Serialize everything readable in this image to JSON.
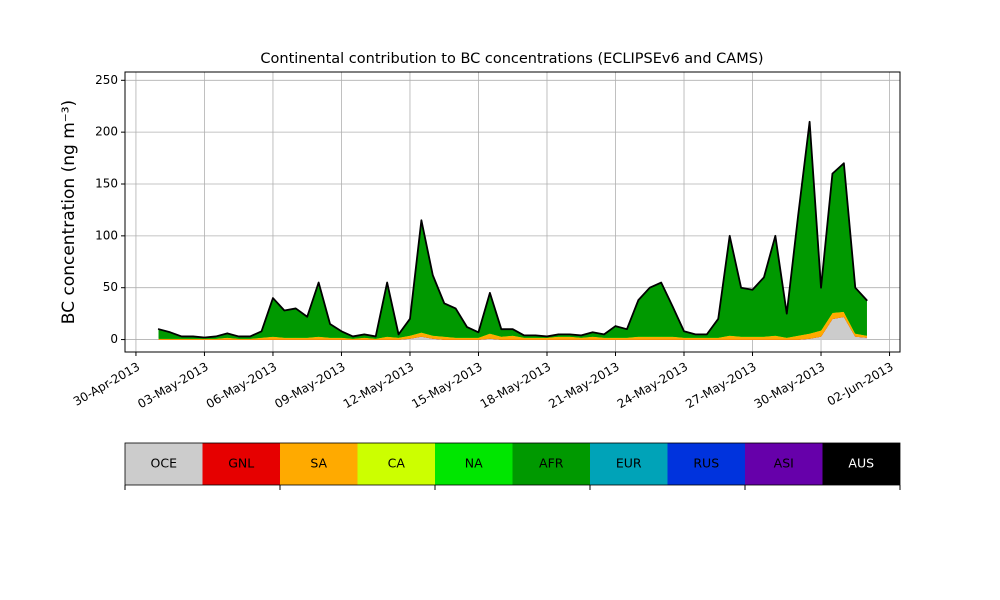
{
  "chart_data": {
    "type": "stacked-area",
    "title": "Continental contribution to BC concentrations (ECLIPSEv6 and CAMS)",
    "y_label": "BC concentration (ng m⁻³)",
    "x": [
      "2013-05-01 00:00",
      "2013-05-01 12:00",
      "2013-05-02 00:00",
      "2013-05-02 12:00",
      "2013-05-03 00:00",
      "2013-05-03 12:00",
      "2013-05-04 00:00",
      "2013-05-04 12:00",
      "2013-05-05 00:00",
      "2013-05-05 12:00",
      "2013-05-06 00:00",
      "2013-05-06 12:00",
      "2013-05-07 00:00",
      "2013-05-07 12:00",
      "2013-05-08 00:00",
      "2013-05-08 12:00",
      "2013-05-09 00:00",
      "2013-05-09 12:00",
      "2013-05-10 00:00",
      "2013-05-10 12:00",
      "2013-05-11 00:00",
      "2013-05-11 12:00",
      "2013-05-12 00:00",
      "2013-05-12 12:00",
      "2013-05-13 00:00",
      "2013-05-13 12:00",
      "2013-05-14 00:00",
      "2013-05-14 12:00",
      "2013-05-15 00:00",
      "2013-05-15 12:00",
      "2013-05-16 00:00",
      "2013-05-16 12:00",
      "2013-05-17 00:00",
      "2013-05-17 12:00",
      "2013-05-18 00:00",
      "2013-05-18 12:00",
      "2013-05-19 00:00",
      "2013-05-19 12:00",
      "2013-05-20 00:00",
      "2013-05-20 12:00",
      "2013-05-21 00:00",
      "2013-05-21 12:00",
      "2013-05-22 00:00",
      "2013-05-22 12:00",
      "2013-05-23 00:00",
      "2013-05-23 12:00",
      "2013-05-24 00:00",
      "2013-05-24 12:00",
      "2013-05-25 00:00",
      "2013-05-25 12:00",
      "2013-05-26 00:00",
      "2013-05-26 12:00",
      "2013-05-27 00:00",
      "2013-05-27 12:00",
      "2013-05-28 00:00",
      "2013-05-28 12:00",
      "2013-05-29 00:00",
      "2013-05-29 12:00",
      "2013-05-30 00:00",
      "2013-05-30 12:00",
      "2013-05-31 00:00",
      "2013-05-31 12:00",
      "2013-06-01 00:00"
    ],
    "series": [
      {
        "name": "OCE",
        "color": "#cccccc",
        "values": [
          0,
          0,
          0,
          0,
          0,
          0,
          0,
          0,
          0,
          0,
          0,
          0,
          0,
          0,
          0,
          0,
          0,
          0,
          0,
          0,
          0,
          0,
          1,
          3,
          1,
          0,
          0,
          0,
          0,
          1,
          0,
          0,
          0,
          0,
          0,
          0,
          0,
          0,
          0,
          0,
          0,
          0,
          0,
          0,
          0,
          0,
          0,
          0,
          0,
          0,
          0,
          0,
          0,
          0,
          0,
          0,
          0,
          1,
          3,
          20,
          22,
          3,
          2
        ]
      },
      {
        "name": "GNL",
        "color": "#e60000",
        "values": [
          0,
          0,
          0,
          0,
          0,
          0,
          0,
          0,
          0,
          0,
          0,
          0,
          0,
          0,
          0,
          0,
          0,
          0,
          0,
          0,
          0,
          0,
          0,
          0,
          0,
          0,
          0,
          0,
          0,
          0,
          0,
          0,
          0,
          0,
          0,
          0,
          0,
          0,
          0,
          0,
          0,
          0,
          0,
          0,
          0,
          0,
          0,
          0,
          0,
          0,
          0,
          0,
          0,
          0,
          0,
          0,
          0,
          0,
          0,
          0,
          0,
          0,
          0
        ]
      },
      {
        "name": "SA",
        "color": "#ffaa00",
        "values": [
          1,
          1,
          1,
          1,
          1,
          1,
          2,
          1,
          1,
          2,
          3,
          2,
          2,
          2,
          3,
          2,
          2,
          1,
          2,
          1,
          3,
          2,
          3,
          4,
          3,
          3,
          2,
          2,
          2,
          5,
          3,
          4,
          2,
          2,
          2,
          3,
          3,
          2,
          3,
          2,
          2,
          2,
          3,
          3,
          3,
          3,
          2,
          2,
          2,
          2,
          4,
          3,
          3,
          3,
          4,
          2,
          4,
          5,
          6,
          6,
          5,
          3,
          2
        ]
      },
      {
        "name": "CA",
        "color": "#ccff00",
        "values": [
          0,
          0,
          0,
          0,
          0,
          0,
          0,
          0,
          0,
          0,
          0,
          0,
          0,
          0,
          0,
          0,
          0,
          0,
          0,
          0,
          0,
          0,
          0,
          0,
          0,
          0,
          0,
          0,
          0,
          0,
          0,
          0,
          0,
          0,
          0,
          0,
          0,
          0,
          0,
          0,
          0,
          0,
          0,
          0,
          0,
          0,
          0,
          0,
          0,
          0,
          0,
          0,
          0,
          0,
          0,
          0,
          0,
          0,
          0,
          0,
          0,
          0,
          0
        ]
      },
      {
        "name": "NA",
        "color": "#00e600",
        "values": [
          0,
          0,
          0,
          0,
          0,
          0,
          0,
          0,
          0,
          0,
          0,
          0,
          0,
          0,
          0,
          0,
          0,
          0,
          0,
          0,
          0,
          0,
          0,
          0,
          0,
          0,
          0,
          0,
          0,
          0,
          0,
          0,
          0,
          0,
          0,
          0,
          0,
          0,
          0,
          0,
          0,
          0,
          0,
          0,
          0,
          0,
          0,
          0,
          0,
          0,
          0,
          0,
          0,
          0,
          0,
          0,
          0,
          0,
          0,
          0,
          0,
          0,
          0
        ]
      },
      {
        "name": "AFR",
        "color": "#009900",
        "values": [
          9,
          6,
          2,
          2,
          1,
          2,
          4,
          2,
          2,
          6,
          37,
          26,
          28,
          20,
          52,
          13,
          6,
          2,
          3,
          2,
          52,
          3,
          16,
          108,
          58,
          32,
          28,
          10,
          5,
          39,
          7,
          6,
          2,
          2,
          1,
          2,
          2,
          2,
          4,
          3,
          11,
          8,
          35,
          47,
          52,
          29,
          6,
          3,
          3,
          18,
          96,
          47,
          45,
          57,
          96,
          23,
          116,
          204,
          41,
          134,
          143,
          44,
          34
        ]
      },
      {
        "name": "EUR",
        "color": "#00a3b8",
        "values": [
          0,
          0,
          0,
          0,
          0,
          0,
          0,
          0,
          0,
          0,
          0,
          0,
          0,
          0,
          0,
          0,
          0,
          0,
          0,
          0,
          0,
          0,
          0,
          0,
          0,
          0,
          0,
          0,
          0,
          0,
          0,
          0,
          0,
          0,
          0,
          0,
          0,
          0,
          0,
          0,
          0,
          0,
          0,
          0,
          0,
          0,
          0,
          0,
          0,
          0,
          0,
          0,
          0,
          0,
          0,
          0,
          0,
          0,
          0,
          0,
          0,
          0,
          0
        ]
      },
      {
        "name": "RUS",
        "color": "#0033dd",
        "values": [
          0,
          0,
          0,
          0,
          0,
          0,
          0,
          0,
          0,
          0,
          0,
          0,
          0,
          0,
          0,
          0,
          0,
          0,
          0,
          0,
          0,
          0,
          0,
          0,
          0,
          0,
          0,
          0,
          0,
          0,
          0,
          0,
          0,
          0,
          0,
          0,
          0,
          0,
          0,
          0,
          0,
          0,
          0,
          0,
          0,
          0,
          0,
          0,
          0,
          0,
          0,
          0,
          0,
          0,
          0,
          0,
          0,
          0,
          0,
          0,
          0,
          0,
          0
        ]
      },
      {
        "name": "ASI",
        "color": "#6600aa",
        "values": [
          0,
          0,
          0,
          0,
          0,
          0,
          0,
          0,
          0,
          0,
          0,
          0,
          0,
          0,
          0,
          0,
          0,
          0,
          0,
          0,
          0,
          0,
          0,
          0,
          0,
          0,
          0,
          0,
          0,
          0,
          0,
          0,
          0,
          0,
          0,
          0,
          0,
          0,
          0,
          0,
          0,
          0,
          0,
          0,
          0,
          0,
          0,
          0,
          0,
          0,
          0,
          0,
          0,
          0,
          0,
          0,
          0,
          0,
          0,
          0,
          0,
          0,
          0
        ]
      },
      {
        "name": "AUS",
        "color": "#000000",
        "values": [
          0,
          0,
          0,
          0,
          0,
          0,
          0,
          0,
          0,
          0,
          0,
          0,
          0,
          0,
          0,
          0,
          0,
          0,
          0,
          0,
          0,
          0,
          0,
          0,
          0,
          0,
          0,
          0,
          0,
          0,
          0,
          0,
          0,
          0,
          0,
          0,
          0,
          0,
          0,
          0,
          0,
          0,
          0,
          0,
          0,
          0,
          0,
          0,
          0,
          0,
          0,
          0,
          0,
          0,
          0,
          0,
          0,
          0,
          0,
          0,
          0,
          0,
          0
        ]
      }
    ],
    "xlim": [
      "2013-04-29 12:30",
      "2013-06-02 11:00"
    ],
    "xticks": [
      {
        "value": "2013-04-30 00:00",
        "label": "30-Apr-2013"
      },
      {
        "value": "2013-05-03 00:00",
        "label": "03-May-2013"
      },
      {
        "value": "2013-05-06 00:00",
        "label": "06-May-2013"
      },
      {
        "value": "2013-05-09 00:00",
        "label": "09-May-2013"
      },
      {
        "value": "2013-05-12 00:00",
        "label": "12-May-2013"
      },
      {
        "value": "2013-05-15 00:00",
        "label": "15-May-2013"
      },
      {
        "value": "2013-05-18 00:00",
        "label": "18-May-2013"
      },
      {
        "value": "2013-05-21 00:00",
        "label": "21-May-2013"
      },
      {
        "value": "2013-05-24 00:00",
        "label": "24-May-2013"
      },
      {
        "value": "2013-05-27 00:00",
        "label": "27-May-2013"
      },
      {
        "value": "2013-05-30 00:00",
        "label": "30-May-2013"
      },
      {
        "value": "2013-06-02 00:00",
        "label": "02-Jun-2013"
      }
    ],
    "ylim": [
      -12,
      258
    ],
    "yticks": [
      0,
      50,
      100,
      150,
      200,
      250
    ],
    "grid": true
  }
}
